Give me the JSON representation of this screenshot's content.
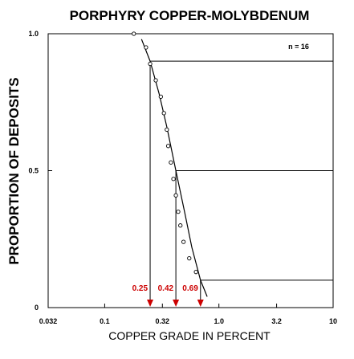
{
  "chart_data": {
    "type": "scatter",
    "title": "PORPHYRY COPPER-MOLYBDENUM",
    "xlabel": "COPPER GRADE IN PERCENT",
    "ylabel": "PROPORTION OF DEPOSITS",
    "x_scale": "log",
    "xlim": [
      0.032,
      10
    ],
    "ylim": [
      0,
      1
    ],
    "x_ticks": [
      "0.032",
      "0.1",
      "0.32",
      "1.0",
      "3.2",
      "10"
    ],
    "x_tick_values": [
      0.032,
      0.1,
      0.32,
      1.0,
      3.2,
      10
    ],
    "y_ticks": [
      "0",
      "0.5",
      "1.0"
    ],
    "y_tick_values": [
      0,
      0.5,
      1.0
    ],
    "n_label": "n = 16",
    "points": {
      "x": [
        0.18,
        0.23,
        0.25,
        0.28,
        0.31,
        0.33,
        0.35,
        0.36,
        0.38,
        0.4,
        0.42,
        0.44,
        0.46,
        0.49,
        0.55,
        0.63
      ],
      "y": [
        1.0,
        0.95,
        0.89,
        0.83,
        0.77,
        0.71,
        0.65,
        0.59,
        0.53,
        0.47,
        0.41,
        0.35,
        0.3,
        0.24,
        0.18,
        0.13
      ]
    },
    "fitted_curve": {
      "x": [
        0.21,
        0.25,
        0.3,
        0.35,
        0.42,
        0.5,
        0.58,
        0.69,
        0.79
      ],
      "y": [
        0.98,
        0.9,
        0.78,
        0.66,
        0.5,
        0.35,
        0.22,
        0.1,
        0.04
      ]
    },
    "percentiles": [
      {
        "proportion": 0.9,
        "grade": 0.25,
        "label": "0.25"
      },
      {
        "proportion": 0.5,
        "grade": 0.42,
        "label": "0.42"
      },
      {
        "proportion": 0.1,
        "grade": 0.69,
        "label": "0.69"
      }
    ],
    "annotation_color": "#cc0000",
    "grid": false,
    "legend": "none"
  }
}
